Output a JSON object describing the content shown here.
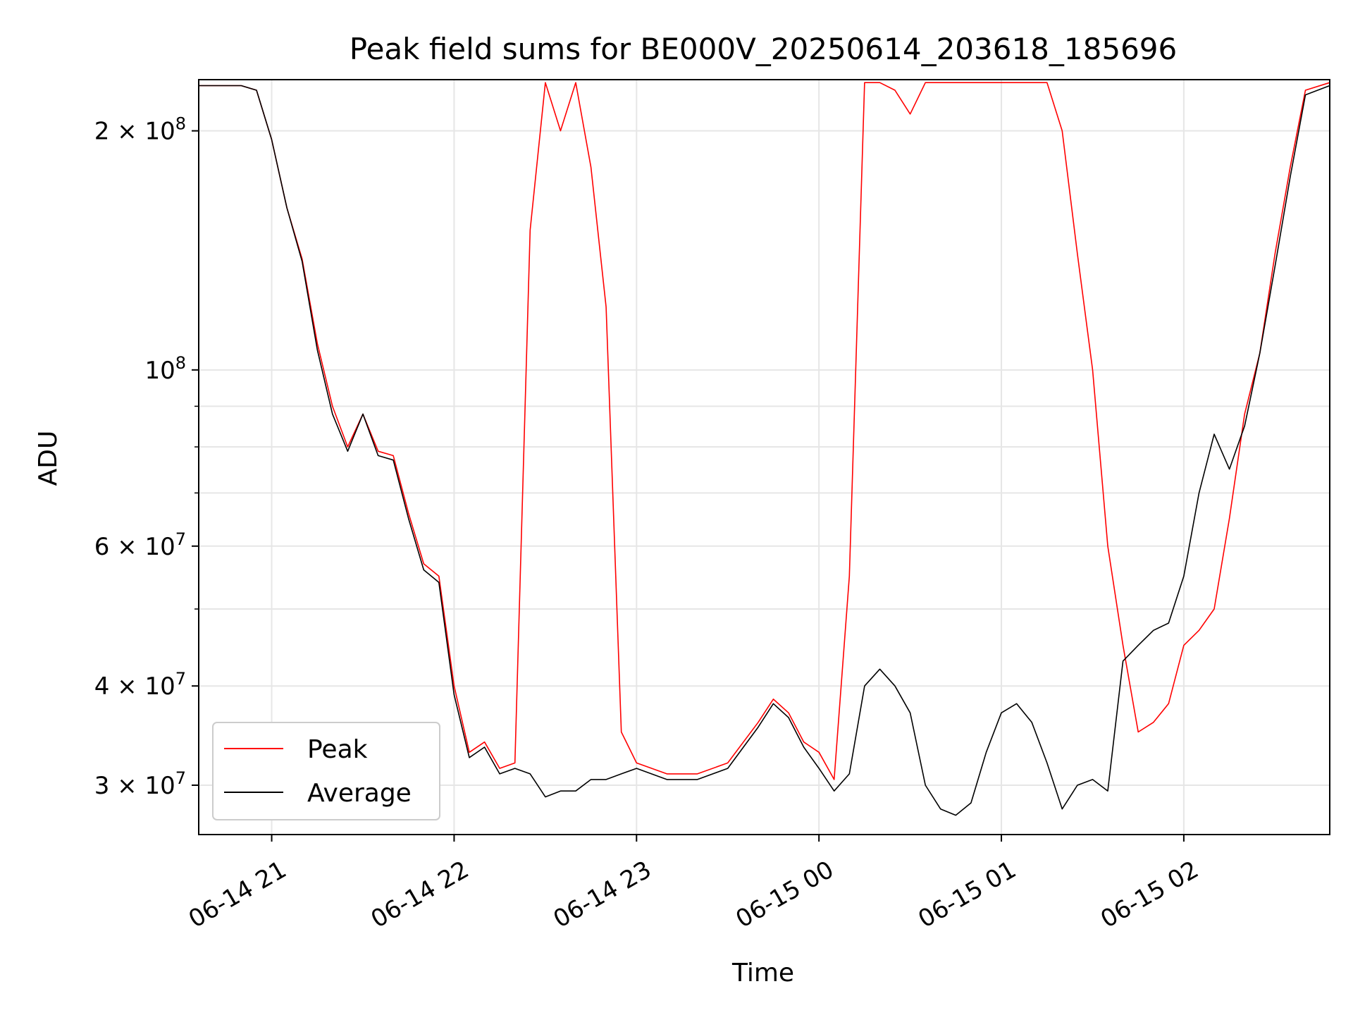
{
  "chart_data": {
    "type": "line",
    "title": "Peak field sums for BE000V_20250614_203618_185696",
    "xlabel": "Time",
    "ylabel": "ADU",
    "yscale": "log",
    "ylim": [
      26000000,
      232000000
    ],
    "xlim": [
      "2025-06-14 20:36",
      "2025-06-15 02:48"
    ],
    "x_ticks": [
      {
        "x": "2025-06-14 21:00",
        "label": "06-14 21"
      },
      {
        "x": "2025-06-14 22:00",
        "label": "06-14 22"
      },
      {
        "x": "2025-06-14 23:00",
        "label": "06-14 23"
      },
      {
        "x": "2025-06-15 00:00",
        "label": "06-15 00"
      },
      {
        "x": "2025-06-15 01:00",
        "label": "06-15 01"
      },
      {
        "x": "2025-06-15 02:00",
        "label": "06-15 02"
      }
    ],
    "y_ticks": [
      {
        "y": 30000000,
        "mant": "3",
        "exp": "7"
      },
      {
        "y": 40000000,
        "mant": "4",
        "exp": "7"
      },
      {
        "y": 60000000,
        "mant": "6",
        "exp": "7"
      },
      {
        "y": 100000000,
        "mant": "",
        "exp": "8"
      },
      {
        "y": 200000000,
        "mant": "2",
        "exp": "8"
      }
    ],
    "y_minor_ticks": [
      50000000,
      70000000,
      80000000,
      90000000
    ],
    "grid": true,
    "legend_position": "bottom-left",
    "series": [
      {
        "name": "Peak",
        "color": "#ff0000",
        "x": [
          "2025-06-14 20:36",
          "2025-06-14 20:45",
          "2025-06-14 20:50",
          "2025-06-14 20:55",
          "2025-06-14 21:00",
          "2025-06-14 21:05",
          "2025-06-14 21:10",
          "2025-06-14 21:15",
          "2025-06-14 21:20",
          "2025-06-14 21:25",
          "2025-06-14 21:30",
          "2025-06-14 21:35",
          "2025-06-14 21:40",
          "2025-06-14 21:45",
          "2025-06-14 21:50",
          "2025-06-14 21:55",
          "2025-06-14 22:00",
          "2025-06-14 22:05",
          "2025-06-14 22:10",
          "2025-06-14 22:15",
          "2025-06-14 22:20",
          "2025-06-14 22:25",
          "2025-06-14 22:30",
          "2025-06-14 22:35",
          "2025-06-14 22:40",
          "2025-06-14 22:45",
          "2025-06-14 22:50",
          "2025-06-14 22:55",
          "2025-06-14 23:00",
          "2025-06-14 23:10",
          "2025-06-14 23:20",
          "2025-06-14 23:30",
          "2025-06-14 23:40",
          "2025-06-14 23:45",
          "2025-06-14 23:50",
          "2025-06-14 23:55",
          "2025-06-15 00:00",
          "2025-06-15 00:05",
          "2025-06-15 00:10",
          "2025-06-15 00:15",
          "2025-06-15 00:20",
          "2025-06-15 00:25",
          "2025-06-15 00:30",
          "2025-06-15 00:35",
          "2025-06-15 00:40",
          "2025-06-15 00:45",
          "2025-06-15 00:50",
          "2025-06-15 00:55",
          "2025-06-15 01:00",
          "2025-06-15 01:05",
          "2025-06-15 01:10",
          "2025-06-15 01:15",
          "2025-06-15 01:20",
          "2025-06-15 01:25",
          "2025-06-15 01:30",
          "2025-06-15 01:35",
          "2025-06-15 01:40",
          "2025-06-15 01:45",
          "2025-06-15 01:50",
          "2025-06-15 01:55",
          "2025-06-15 02:00",
          "2025-06-15 02:05",
          "2025-06-15 02:10",
          "2025-06-15 02:15",
          "2025-06-15 02:20",
          "2025-06-15 02:25",
          "2025-06-15 02:30",
          "2025-06-15 02:35",
          "2025-06-15 02:40",
          "2025-06-15 02:48"
        ],
        "values": [
          228000000,
          228000000,
          228000000,
          225000000,
          195000000,
          160000000,
          138000000,
          108000000,
          90000000,
          80000000,
          88000000,
          79000000,
          78000000,
          66000000,
          57000000,
          55000000,
          40000000,
          33000000,
          34000000,
          31500000,
          32000000,
          150000000,
          230000000,
          200000000,
          230000000,
          180000000,
          120000000,
          35000000,
          32000000,
          31000000,
          31000000,
          32000000,
          36000000,
          38500000,
          37000000,
          34000000,
          33000000,
          30500000,
          55000000,
          230000000,
          230000000,
          225000000,
          210000000,
          230000000,
          230000000,
          230000000,
          230000000,
          230000000,
          230000000,
          230000000,
          230000000,
          230000000,
          200000000,
          140000000,
          100000000,
          60000000,
          45000000,
          35000000,
          36000000,
          38000000,
          45000000,
          47000000,
          50000000,
          65000000,
          88000000,
          105000000,
          140000000,
          180000000,
          225000000,
          230000000
        ]
      },
      {
        "name": "Average",
        "color": "#000000",
        "x": [
          "2025-06-14 20:36",
          "2025-06-14 20:45",
          "2025-06-14 20:50",
          "2025-06-14 20:55",
          "2025-06-14 21:00",
          "2025-06-14 21:05",
          "2025-06-14 21:10",
          "2025-06-14 21:15",
          "2025-06-14 21:20",
          "2025-06-14 21:25",
          "2025-06-14 21:30",
          "2025-06-14 21:35",
          "2025-06-14 21:40",
          "2025-06-14 21:45",
          "2025-06-14 21:50",
          "2025-06-14 21:55",
          "2025-06-14 22:00",
          "2025-06-14 22:05",
          "2025-06-14 22:10",
          "2025-06-14 22:15",
          "2025-06-14 22:20",
          "2025-06-14 22:25",
          "2025-06-14 22:30",
          "2025-06-14 22:35",
          "2025-06-14 22:40",
          "2025-06-14 22:45",
          "2025-06-14 22:50",
          "2025-06-14 22:55",
          "2025-06-14 23:00",
          "2025-06-14 23:10",
          "2025-06-14 23:20",
          "2025-06-14 23:30",
          "2025-06-14 23:40",
          "2025-06-14 23:45",
          "2025-06-14 23:50",
          "2025-06-14 23:55",
          "2025-06-15 00:00",
          "2025-06-15 00:05",
          "2025-06-15 00:10",
          "2025-06-15 00:15",
          "2025-06-15 00:20",
          "2025-06-15 00:25",
          "2025-06-15 00:30",
          "2025-06-15 00:35",
          "2025-06-15 00:40",
          "2025-06-15 00:45",
          "2025-06-15 00:50",
          "2025-06-15 00:55",
          "2025-06-15 01:00",
          "2025-06-15 01:05",
          "2025-06-15 01:10",
          "2025-06-15 01:15",
          "2025-06-15 01:20",
          "2025-06-15 01:25",
          "2025-06-15 01:30",
          "2025-06-15 01:35",
          "2025-06-15 01:40",
          "2025-06-15 01:45",
          "2025-06-15 01:50",
          "2025-06-15 01:55",
          "2025-06-15 02:00",
          "2025-06-15 02:05",
          "2025-06-15 02:10",
          "2025-06-15 02:15",
          "2025-06-15 02:20",
          "2025-06-15 02:25",
          "2025-06-15 02:30",
          "2025-06-15 02:35",
          "2025-06-15 02:40",
          "2025-06-15 02:48"
        ],
        "values": [
          228000000,
          228000000,
          228000000,
          225000000,
          195000000,
          160000000,
          137000000,
          106000000,
          88000000,
          79000000,
          88000000,
          78000000,
          77000000,
          65000000,
          56000000,
          54000000,
          39000000,
          32500000,
          33500000,
          31000000,
          31500000,
          31000000,
          29000000,
          29500000,
          29500000,
          30500000,
          30500000,
          31000000,
          31500000,
          30500000,
          30500000,
          31500000,
          35500000,
          38000000,
          36500000,
          33500000,
          31500000,
          29500000,
          31000000,
          40000000,
          42000000,
          40000000,
          37000000,
          30000000,
          28000000,
          27500000,
          28500000,
          33000000,
          37000000,
          38000000,
          36000000,
          32000000,
          28000000,
          30000000,
          30500000,
          29500000,
          43000000,
          45000000,
          47000000,
          48000000,
          55000000,
          70000000,
          83000000,
          75000000,
          85000000,
          105000000,
          135000000,
          175000000,
          222000000,
          228000000
        ]
      }
    ]
  }
}
